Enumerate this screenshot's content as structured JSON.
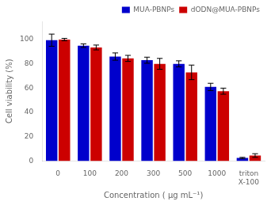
{
  "chart_data": {
    "type": "bar",
    "categories": [
      "0",
      "100",
      "200",
      "300",
      "500",
      "1000",
      "triton\nX-100"
    ],
    "series": [
      {
        "name": "MUA-PBNPs",
        "color": "#0000CC",
        "values": [
          99.5,
          95.0,
          86.0,
          83.0,
          80.0,
          61.0,
          2.5
        ],
        "errors": [
          5.0,
          1.5,
          3.0,
          2.5,
          2.5,
          3.0,
          0.5
        ]
      },
      {
        "name": "dODN@MUA-PBNPs",
        "color": "#CC0000",
        "values": [
          100.0,
          93.5,
          84.5,
          80.0,
          73.0,
          57.5,
          4.5
        ],
        "errors": [
          1.0,
          2.0,
          2.5,
          4.5,
          6.0,
          2.5,
          1.5
        ]
      }
    ],
    "xlabel": "Concentration ( μg mL⁻¹)",
    "ylabel": "Cell viability (%)",
    "ylim": [
      0,
      115
    ],
    "yticks": [
      0,
      20,
      40,
      60,
      80,
      100
    ],
    "grid": false,
    "legend": "upper right"
  }
}
